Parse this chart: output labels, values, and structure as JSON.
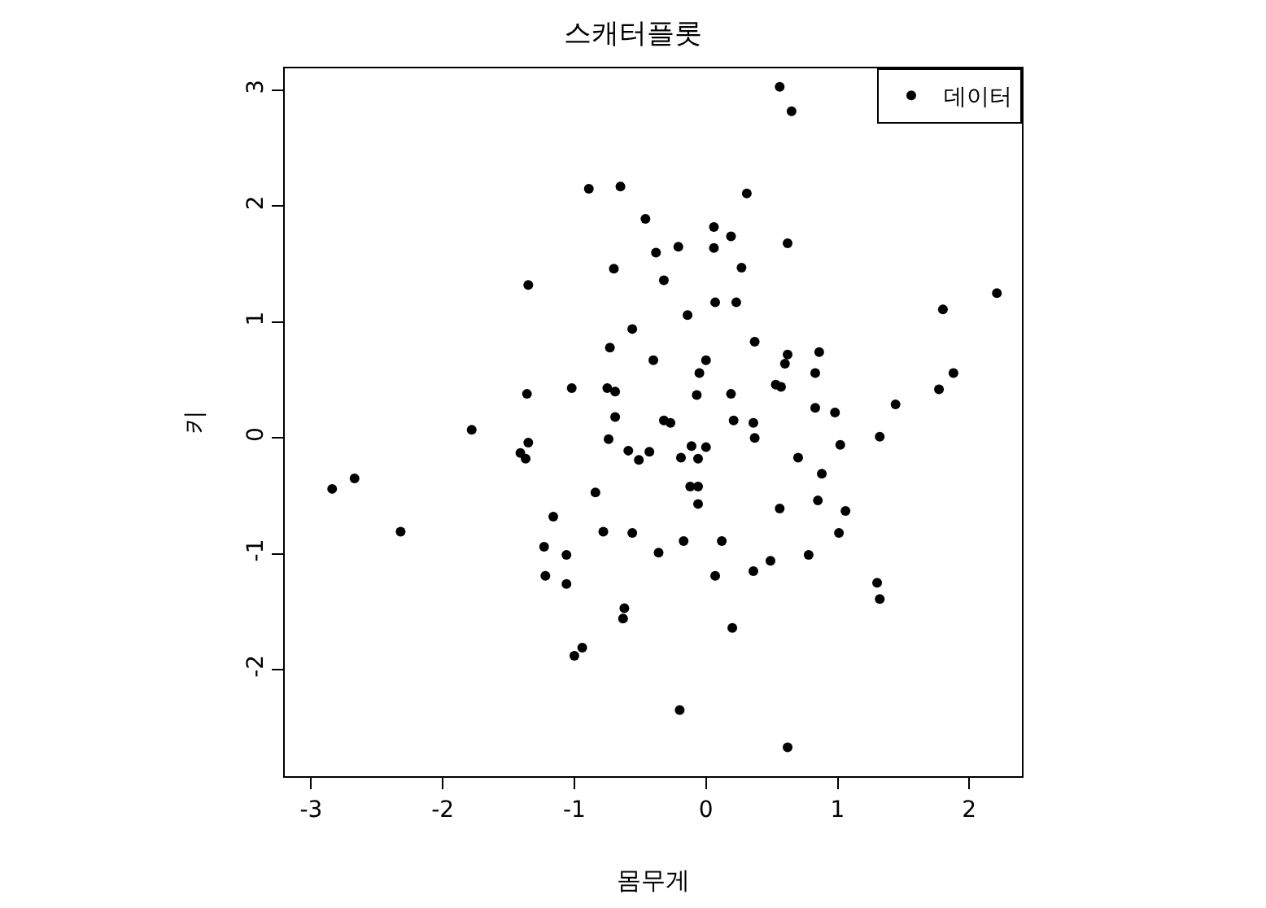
{
  "chart_data": {
    "type": "scatter",
    "title": "스캐터플롯",
    "xlabel": "몸무게",
    "ylabel": "키",
    "xlim": [
      -3.2,
      2.4
    ],
    "ylim": [
      -2.92,
      3.19
    ],
    "xticks": [
      -3,
      -2,
      -1,
      0,
      1,
      2
    ],
    "yticks": [
      -2,
      -1,
      0,
      1,
      2,
      3
    ],
    "legend": "top right",
    "marker": "circle",
    "series": [
      {
        "name": "데이터",
        "color": "#000000",
        "x": [
          0.56,
          0.65,
          -0.89,
          -0.65,
          0.31,
          -0.46,
          -0.38,
          -0.7,
          -1.35,
          -0.21,
          0.06,
          0.19,
          0.06,
          0.27,
          0.62,
          -0.32,
          0.07,
          0.23,
          -0.14,
          -0.56,
          0.37,
          -0.73,
          -0.4,
          0.0,
          0.62,
          0.86,
          0.6,
          2.21,
          1.8,
          0.83,
          1.88,
          1.77,
          1.44,
          0.98,
          0.83,
          0.53,
          0.57,
          0.19,
          -0.07,
          -0.05,
          -0.75,
          -0.69,
          -1.02,
          -1.36,
          -0.69,
          -0.32,
          -0.27,
          0.21,
          0.36,
          0.37,
          1.32,
          1.02,
          -1.78,
          -1.41,
          -1.35,
          -1.37,
          -0.74,
          -0.59,
          -0.43,
          -0.51,
          -0.11,
          0.0,
          -0.19,
          -0.06,
          0.7,
          0.88,
          -2.84,
          -2.67,
          -2.32,
          -0.84,
          -0.12,
          -0.06,
          -0.06,
          0.56,
          0.85,
          1.06,
          -1.16,
          -0.78,
          -0.56,
          -0.17,
          0.12,
          1.01,
          -1.23,
          -1.06,
          -0.36,
          0.49,
          0.78,
          0.36,
          0.07,
          -1.22,
          -1.06,
          1.3,
          1.32,
          -0.62,
          -0.63,
          0.2,
          -0.94,
          -1.0,
          -0.2,
          0.62
        ],
        "values": [
          3.03,
          2.82,
          2.15,
          2.17,
          2.11,
          1.89,
          1.6,
          1.46,
          1.32,
          1.65,
          1.82,
          1.74,
          1.64,
          1.47,
          1.68,
          1.36,
          1.17,
          1.17,
          1.06,
          0.94,
          0.83,
          0.78,
          0.67,
          0.67,
          0.72,
          0.74,
          0.64,
          1.25,
          1.11,
          0.56,
          0.56,
          0.42,
          0.29,
          0.22,
          0.26,
          0.46,
          0.44,
          0.38,
          0.37,
          0.56,
          0.43,
          0.4,
          0.43,
          0.38,
          0.18,
          0.15,
          0.13,
          0.15,
          0.13,
          0.0,
          0.01,
          -0.06,
          0.07,
          -0.13,
          -0.04,
          -0.18,
          -0.01,
          -0.11,
          -0.12,
          -0.19,
          -0.07,
          -0.08,
          -0.17,
          -0.18,
          -0.17,
          -0.31,
          -0.44,
          -0.35,
          -0.81,
          -0.47,
          -0.42,
          -0.42,
          -0.57,
          -0.61,
          -0.54,
          -0.63,
          -0.68,
          -0.81,
          -0.82,
          -0.89,
          -0.89,
          -0.82,
          -0.94,
          -1.01,
          -0.99,
          -1.06,
          -1.01,
          -1.15,
          -1.19,
          -1.19,
          -1.26,
          -1.25,
          -1.39,
          -1.47,
          -1.56,
          -1.64,
          -1.81,
          -1.88,
          -2.35,
          -2.67
        ]
      }
    ]
  }
}
